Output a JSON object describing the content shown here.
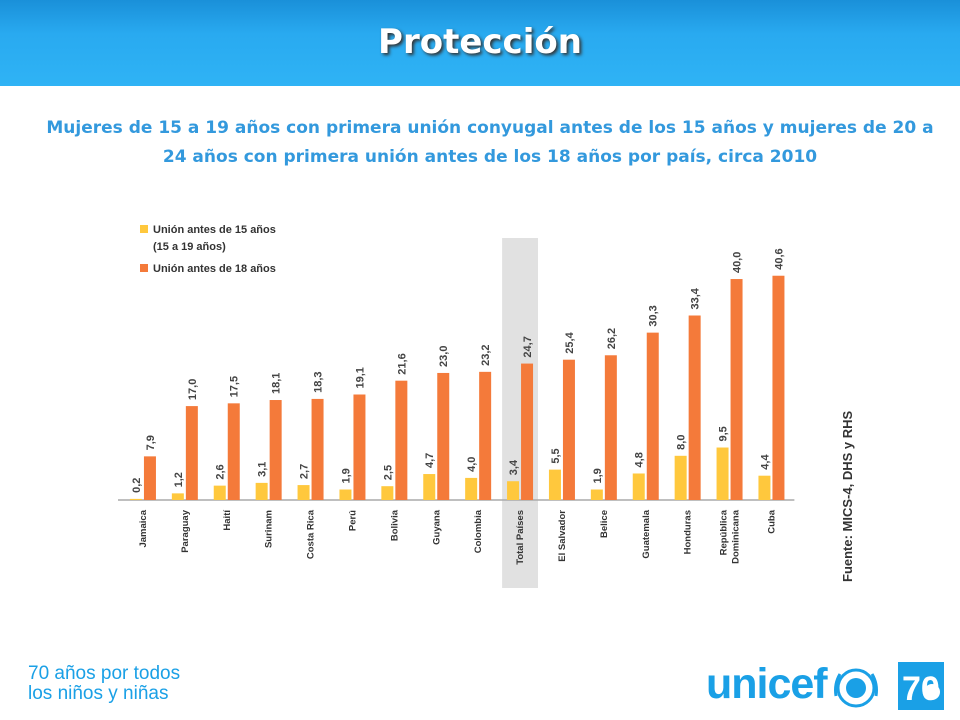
{
  "header": {
    "title": "Protección"
  },
  "subtitle": "Mujeres de 15 a 19 años con primera unión conyugal antes de los 15 años y mujeres de 20 a 24 años con primera unión antes de los 18 años por país, circa 2010",
  "footer": {
    "line1": "70 años por todos",
    "line2": "los niños y niñas"
  },
  "logo": {
    "text": "unicef",
    "anniversary": "70"
  },
  "colors": {
    "accent": "#29aaf0",
    "series1": "#ffc83d",
    "series2": "#f47a3a",
    "highlight": "#d9d9d9"
  },
  "chart_data": {
    "type": "bar",
    "categories": [
      "Jamaica",
      "Paraguay",
      "Haití",
      "Surinam",
      "Costa Rica",
      "Perú",
      "Bolivia",
      "Guyana",
      "Colombia",
      "Total Países",
      "El Salvador",
      "Belice",
      "Guatemala",
      "Honduras",
      "República Dominicana",
      "Cuba"
    ],
    "series": [
      {
        "name": "Unión antes de 15 años (15 a 19 años)",
        "values": [
          0.2,
          1.2,
          2.6,
          3.1,
          2.7,
          1.9,
          2.5,
          4.7,
          4.0,
          3.4,
          5.5,
          1.9,
          4.8,
          8.0,
          9.5,
          4.4
        ],
        "labels": [
          "0,2",
          "1,2",
          "2,6",
          "3,1",
          "2,7",
          "1,9",
          "2,5",
          "4,7",
          "4,0",
          "3,4",
          "5,5",
          "1,9",
          "4,8",
          "8,0",
          "9,5",
          "4,4"
        ]
      },
      {
        "name": "Unión antes de 18 años",
        "values": [
          7.9,
          17.0,
          17.5,
          18.1,
          18.3,
          19.1,
          21.6,
          23.0,
          23.2,
          24.7,
          25.4,
          26.2,
          30.3,
          33.4,
          40.0,
          40.6
        ],
        "labels": [
          "7,9",
          "17,0",
          "17,5",
          "18,1",
          "18,3",
          "19,1",
          "21,6",
          "23,0",
          "23,2",
          "24,7",
          "25,4",
          "26,2",
          "30,3",
          "33,4",
          "40,0",
          "40,6"
        ]
      }
    ],
    "legend": {
      "items": [
        {
          "line1": "Unión antes de 15 años",
          "line2": "(15 a 19 años)"
        },
        {
          "line1": "Unión antes de 18 años",
          "line2": ""
        }
      ],
      "position": "top-left"
    },
    "highlighted_category": "Total Países",
    "source": "Fuente: MICS-4, DHS y RHS",
    "ylim": [
      0,
      42
    ],
    "grid": false
  }
}
